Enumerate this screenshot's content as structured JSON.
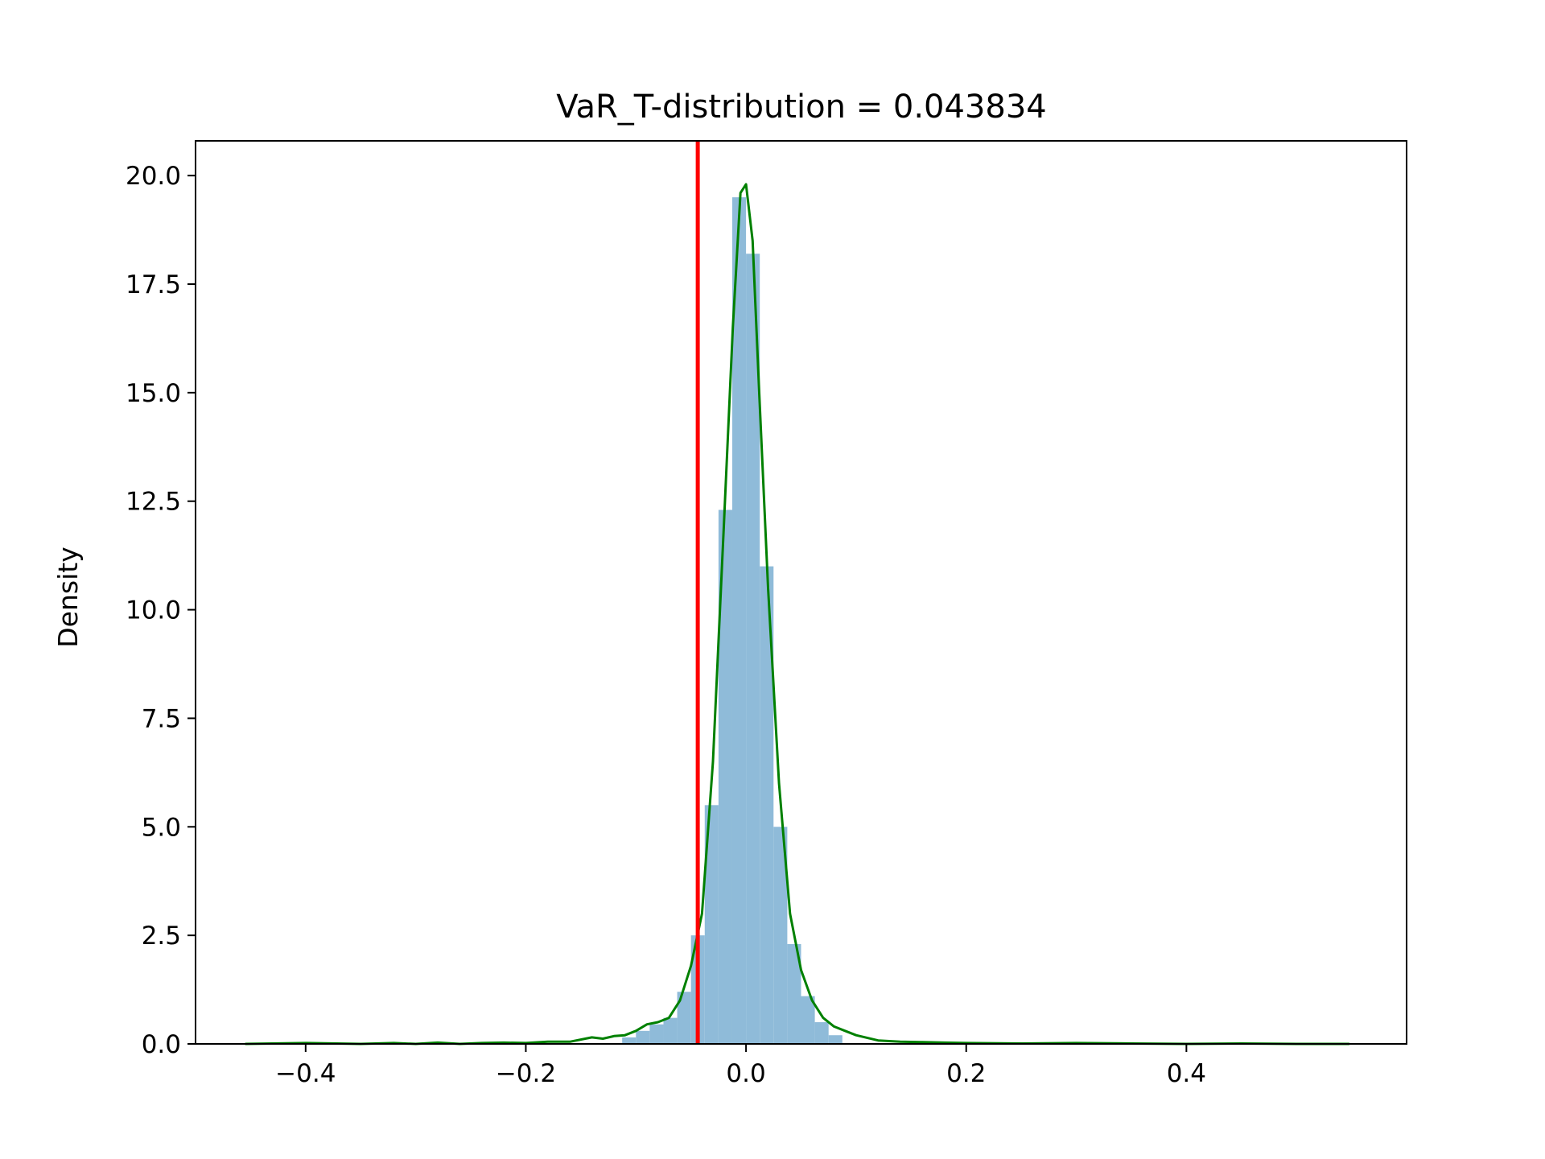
{
  "chart_data": {
    "type": "bar",
    "title": "VaR_T-distribution = 0.043834",
    "xlabel": "",
    "ylabel": "Density",
    "xlim": [
      -0.5,
      0.6
    ],
    "ylim": [
      0,
      20.8
    ],
    "xticks": [
      -0.4,
      -0.2,
      0.0,
      0.2,
      0.4
    ],
    "xtick_labels": [
      "−0.4",
      "−0.2",
      "0.0",
      "0.2",
      "0.4"
    ],
    "yticks": [
      0,
      2.5,
      5,
      7.5,
      10,
      12.5,
      15,
      17.5,
      20
    ],
    "ytick_labels": [
      "0.0",
      "2.5",
      "5.0",
      "7.5",
      "10.0",
      "12.5",
      "15.0",
      "17.5",
      "20.0"
    ],
    "grid": false,
    "histogram": {
      "color": "#8fbbd9",
      "bin_width": 0.0125,
      "bins": [
        {
          "x0": -0.1125,
          "height": 0.15
        },
        {
          "x0": -0.1,
          "height": 0.3
        },
        {
          "x0": -0.0875,
          "height": 0.45
        },
        {
          "x0": -0.075,
          "height": 0.6
        },
        {
          "x0": -0.0625,
          "height": 1.2
        },
        {
          "x0": -0.05,
          "height": 2.5
        },
        {
          "x0": -0.0375,
          "height": 5.5
        },
        {
          "x0": -0.025,
          "height": 12.3
        },
        {
          "x0": -0.0125,
          "height": 19.5
        },
        {
          "x0": 0.0,
          "height": 18.2
        },
        {
          "x0": 0.0125,
          "height": 11.0
        },
        {
          "x0": 0.025,
          "height": 5.0
        },
        {
          "x0": 0.0375,
          "height": 2.3
        },
        {
          "x0": 0.05,
          "height": 1.1
        },
        {
          "x0": 0.0625,
          "height": 0.5
        },
        {
          "x0": 0.075,
          "height": 0.2
        }
      ]
    },
    "density_curve": {
      "color": "#008000",
      "points": [
        [
          -0.455,
          0.0
        ],
        [
          -0.4,
          0.02
        ],
        [
          -0.35,
          0.0
        ],
        [
          -0.32,
          0.02
        ],
        [
          -0.3,
          0.0
        ],
        [
          -0.28,
          0.03
        ],
        [
          -0.26,
          0.0
        ],
        [
          -0.24,
          0.02
        ],
        [
          -0.22,
          0.03
        ],
        [
          -0.2,
          0.02
        ],
        [
          -0.18,
          0.05
        ],
        [
          -0.16,
          0.05
        ],
        [
          -0.14,
          0.15
        ],
        [
          -0.13,
          0.12
        ],
        [
          -0.12,
          0.18
        ],
        [
          -0.11,
          0.2
        ],
        [
          -0.1,
          0.3
        ],
        [
          -0.09,
          0.45
        ],
        [
          -0.08,
          0.5
        ],
        [
          -0.07,
          0.6
        ],
        [
          -0.06,
          1.0
        ],
        [
          -0.05,
          1.8
        ],
        [
          -0.04,
          3.0
        ],
        [
          -0.03,
          6.5
        ],
        [
          -0.02,
          12.0
        ],
        [
          -0.012,
          16.5
        ],
        [
          -0.005,
          19.6
        ],
        [
          0.0,
          19.8
        ],
        [
          0.006,
          18.5
        ],
        [
          0.012,
          15.0
        ],
        [
          0.02,
          10.5
        ],
        [
          0.03,
          6.0
        ],
        [
          0.04,
          3.0
        ],
        [
          0.05,
          1.7
        ],
        [
          0.06,
          1.0
        ],
        [
          0.07,
          0.6
        ],
        [
          0.08,
          0.4
        ],
        [
          0.09,
          0.3
        ],
        [
          0.1,
          0.2
        ],
        [
          0.12,
          0.08
        ],
        [
          0.14,
          0.05
        ],
        [
          0.16,
          0.04
        ],
        [
          0.18,
          0.03
        ],
        [
          0.2,
          0.02
        ],
        [
          0.25,
          0.01
        ],
        [
          0.3,
          0.02
        ],
        [
          0.35,
          0.01
        ],
        [
          0.4,
          0.0
        ],
        [
          0.45,
          0.01
        ],
        [
          0.5,
          0.0
        ],
        [
          0.548,
          0.0
        ]
      ]
    },
    "var_line": {
      "x": -0.043834,
      "color": "#ff0000"
    }
  }
}
